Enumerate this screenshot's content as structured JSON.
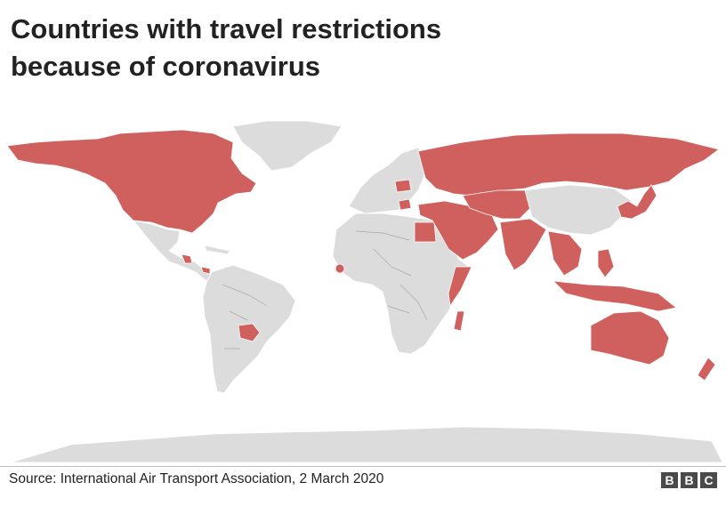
{
  "title": {
    "line1": "Countries with travel restrictions",
    "line2": "because of coronavirus"
  },
  "map_data": {
    "type": "choropleth",
    "restricted_color": "#d0605e",
    "unrestricted_color": "#dcdcdc"
  },
  "footer": {
    "source": "Source: International Air Transport Association, 2 March 2020",
    "logo_letters": [
      "B",
      "B",
      "C"
    ]
  }
}
